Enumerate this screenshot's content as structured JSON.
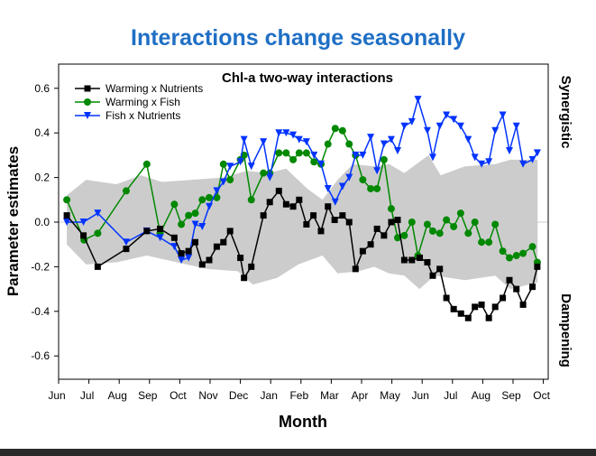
{
  "page_title": "Interactions change seasonally",
  "colors": {
    "title": "#1f6fc5",
    "band": "#cccccc",
    "warming_nutrients": "#000000",
    "warming_fish": "#008800",
    "fish_nutrients": "#0033ff"
  },
  "right_labels": {
    "top": "Synergistic",
    "bottom": "Dampening"
  },
  "chart_data": {
    "type": "line",
    "title": "Chl-a two-way interactions",
    "xlabel": "Month",
    "ylabel": "Parameter estimates",
    "x_unit": "months from first Jun tick",
    "xticks": [
      "Jun",
      "Jul",
      "Aug",
      "Sep",
      "Oct",
      "Nov",
      "Dec",
      "Jan",
      "Feb",
      "Mar",
      "Apr",
      "May",
      "Jun",
      "Jul",
      "Aug",
      "Sep",
      "Oct"
    ],
    "yticks": [
      "0.6",
      "0.4",
      "0.2",
      "0.0",
      "-0.2",
      "-0.4",
      "-0.6"
    ],
    "ylim": [
      -0.7,
      0.7
    ],
    "grid": false,
    "legend": "top-left",
    "band": {
      "upper": [
        [
          0.36,
          0.12
        ],
        [
          1,
          0.19
        ],
        [
          2,
          0.17
        ],
        [
          2.8,
          0.21
        ],
        [
          3.5,
          0.18
        ],
        [
          4.5,
          0.19
        ],
        [
          5.5,
          0.2
        ],
        [
          6.3,
          0.23
        ],
        [
          7,
          0.22
        ],
        [
          7.6,
          0.24
        ],
        [
          8.3,
          0.15
        ],
        [
          8.8,
          0.1
        ],
        [
          9.3,
          0.19
        ],
        [
          9.8,
          0.26
        ],
        [
          10.5,
          0.25
        ],
        [
          11,
          0.26
        ],
        [
          11.5,
          0.22
        ],
        [
          12.3,
          0.3
        ],
        [
          12.7,
          0.21
        ],
        [
          13.5,
          0.25
        ],
        [
          14.5,
          0.26
        ],
        [
          15,
          0.28
        ],
        [
          15.9,
          0.28
        ]
      ],
      "lower": [
        [
          0.36,
          -0.1
        ],
        [
          1,
          -0.19
        ],
        [
          2,
          -0.18
        ],
        [
          3,
          -0.15
        ],
        [
          4,
          -0.18
        ],
        [
          5,
          -0.21
        ],
        [
          6,
          -0.22
        ],
        [
          6.5,
          -0.28
        ],
        [
          7.3,
          -0.25
        ],
        [
          8,
          -0.19
        ],
        [
          8.8,
          -0.15
        ],
        [
          9.3,
          -0.23
        ],
        [
          10,
          -0.22
        ],
        [
          10.5,
          -0.2
        ],
        [
          11,
          -0.23
        ],
        [
          11.5,
          -0.24
        ],
        [
          12,
          -0.3
        ],
        [
          12.5,
          -0.24
        ],
        [
          13.5,
          -0.26
        ],
        [
          14.5,
          -0.24
        ],
        [
          15,
          -0.3
        ],
        [
          15.9,
          -0.27
        ]
      ]
    },
    "series": [
      {
        "name": "Warming x Nutrients",
        "marker": "square",
        "color": "#000000",
        "points": [
          [
            0.36,
            0.03
          ],
          [
            0.91,
            -0.06
          ],
          [
            1.38,
            -0.2
          ],
          [
            2.32,
            -0.12
          ],
          [
            3.0,
            -0.04
          ],
          [
            3.44,
            -0.03
          ],
          [
            3.91,
            -0.07
          ],
          [
            4.14,
            -0.14
          ],
          [
            4.38,
            -0.13
          ],
          [
            4.6,
            -0.09
          ],
          [
            4.83,
            -0.19
          ],
          [
            5.06,
            -0.17
          ],
          [
            5.31,
            -0.11
          ],
          [
            5.53,
            -0.09
          ],
          [
            5.75,
            -0.04
          ],
          [
            6.09,
            -0.16
          ],
          [
            6.21,
            -0.25
          ],
          [
            6.45,
            -0.2
          ],
          [
            6.85,
            0.03
          ],
          [
            7.06,
            0.09
          ],
          [
            7.36,
            0.14
          ],
          [
            7.6,
            0.08
          ],
          [
            7.83,
            0.07
          ],
          [
            8.03,
            0.1
          ],
          [
            8.27,
            -0.01
          ],
          [
            8.5,
            0.03
          ],
          [
            8.75,
            -0.04
          ],
          [
            8.98,
            0.07
          ],
          [
            9.2,
            0.01
          ],
          [
            9.46,
            0.03
          ],
          [
            9.68,
            0.0
          ],
          [
            9.89,
            -0.21
          ],
          [
            10.13,
            -0.13
          ],
          [
            10.39,
            -0.1
          ],
          [
            10.6,
            -0.03
          ],
          [
            10.83,
            -0.06
          ],
          [
            11.07,
            0.0
          ],
          [
            11.28,
            0.01
          ],
          [
            11.5,
            -0.17
          ],
          [
            11.75,
            -0.17
          ],
          [
            12.01,
            -0.16
          ],
          [
            12.26,
            -0.18
          ],
          [
            12.44,
            -0.24
          ],
          [
            12.67,
            -0.21
          ],
          [
            12.89,
            -0.34
          ],
          [
            13.13,
            -0.39
          ],
          [
            13.37,
            -0.41
          ],
          [
            13.61,
            -0.43
          ],
          [
            13.83,
            -0.38
          ],
          [
            14.05,
            -0.37
          ],
          [
            14.29,
            -0.43
          ],
          [
            14.5,
            -0.38
          ],
          [
            14.75,
            -0.34
          ],
          [
            14.97,
            -0.26
          ],
          [
            15.2,
            -0.3
          ],
          [
            15.42,
            -0.37
          ],
          [
            15.73,
            -0.29
          ],
          [
            15.89,
            -0.2
          ]
        ]
      },
      {
        "name": "Warming x Fish",
        "marker": "circle",
        "color": "#008800",
        "points": [
          [
            0.36,
            0.1
          ],
          [
            0.93,
            -0.08
          ],
          [
            1.38,
            -0.05
          ],
          [
            2.32,
            0.14
          ],
          [
            3.0,
            0.26
          ],
          [
            3.44,
            -0.05
          ],
          [
            3.91,
            0.08
          ],
          [
            4.14,
            -0.01
          ],
          [
            4.38,
            0.03
          ],
          [
            4.6,
            0.04
          ],
          [
            4.83,
            0.1
          ],
          [
            5.06,
            0.11
          ],
          [
            5.31,
            0.11
          ],
          [
            5.53,
            0.26
          ],
          [
            5.75,
            0.19
          ],
          [
            6.09,
            0.28
          ],
          [
            6.21,
            0.3
          ],
          [
            6.45,
            0.1
          ],
          [
            6.85,
            0.22
          ],
          [
            7.06,
            0.22
          ],
          [
            7.36,
            0.31
          ],
          [
            7.6,
            0.31
          ],
          [
            7.83,
            0.28
          ],
          [
            8.03,
            0.31
          ],
          [
            8.27,
            0.31
          ],
          [
            8.52,
            0.27
          ],
          [
            8.75,
            0.26
          ],
          [
            8.98,
            0.35
          ],
          [
            9.22,
            0.42
          ],
          [
            9.46,
            0.41
          ],
          [
            9.68,
            0.35
          ],
          [
            9.89,
            0.3
          ],
          [
            10.13,
            0.19
          ],
          [
            10.39,
            0.15
          ],
          [
            10.6,
            0.15
          ],
          [
            10.83,
            0.28
          ],
          [
            11.07,
            0.06
          ],
          [
            11.28,
            -0.07
          ],
          [
            11.5,
            -0.06
          ],
          [
            11.75,
            0.0
          ],
          [
            11.95,
            -0.15
          ],
          [
            12.26,
            -0.01
          ],
          [
            12.44,
            -0.04
          ],
          [
            12.67,
            -0.05
          ],
          [
            12.89,
            0.01
          ],
          [
            13.13,
            -0.02
          ],
          [
            13.36,
            0.04
          ],
          [
            13.61,
            -0.05
          ],
          [
            13.83,
            0.0
          ],
          [
            14.05,
            -0.09
          ],
          [
            14.29,
            -0.09
          ],
          [
            14.5,
            -0.01
          ],
          [
            14.75,
            -0.13
          ],
          [
            14.97,
            -0.16
          ],
          [
            15.2,
            -0.15
          ],
          [
            15.42,
            -0.14
          ],
          [
            15.73,
            -0.11
          ],
          [
            15.89,
            -0.18
          ]
        ]
      },
      {
        "name": "Fish x Nutrients",
        "marker": "triangle-down",
        "color": "#0033ff",
        "points": [
          [
            0.36,
            0.0
          ],
          [
            0.91,
            0.0
          ],
          [
            1.38,
            0.04
          ],
          [
            2.32,
            -0.09
          ],
          [
            3.0,
            -0.04
          ],
          [
            3.44,
            -0.07
          ],
          [
            3.91,
            -0.11
          ],
          [
            4.14,
            -0.17
          ],
          [
            4.38,
            -0.16
          ],
          [
            4.6,
            -0.01
          ],
          [
            4.83,
            -0.02
          ],
          [
            5.06,
            0.07
          ],
          [
            5.31,
            0.14
          ],
          [
            5.53,
            0.18
          ],
          [
            5.75,
            0.25
          ],
          [
            6.09,
            0.27
          ],
          [
            6.21,
            0.37
          ],
          [
            6.45,
            0.25
          ],
          [
            6.85,
            0.36
          ],
          [
            7.06,
            0.2
          ],
          [
            7.36,
            0.4
          ],
          [
            7.6,
            0.4
          ],
          [
            7.83,
            0.39
          ],
          [
            8.03,
            0.37
          ],
          [
            8.27,
            0.36
          ],
          [
            8.52,
            0.3
          ],
          [
            8.75,
            0.26
          ],
          [
            8.98,
            0.15
          ],
          [
            9.22,
            0.09
          ],
          [
            9.46,
            0.16
          ],
          [
            9.68,
            0.2
          ],
          [
            9.89,
            0.3
          ],
          [
            10.13,
            0.3
          ],
          [
            10.39,
            0.38
          ],
          [
            10.6,
            0.23
          ],
          [
            10.83,
            0.35
          ],
          [
            11.07,
            0.37
          ],
          [
            11.28,
            0.32
          ],
          [
            11.5,
            0.43
          ],
          [
            11.75,
            0.45
          ],
          [
            11.95,
            0.55
          ],
          [
            12.26,
            0.41
          ],
          [
            12.44,
            0.29
          ],
          [
            12.67,
            0.43
          ],
          [
            12.89,
            0.48
          ],
          [
            13.13,
            0.46
          ],
          [
            13.36,
            0.43
          ],
          [
            13.61,
            0.37
          ],
          [
            13.83,
            0.29
          ],
          [
            14.05,
            0.26
          ],
          [
            14.29,
            0.27
          ],
          [
            14.5,
            0.41
          ],
          [
            14.75,
            0.48
          ],
          [
            14.97,
            0.32
          ],
          [
            15.2,
            0.43
          ],
          [
            15.42,
            0.26
          ],
          [
            15.73,
            0.28
          ],
          [
            15.89,
            0.31
          ]
        ]
      }
    ]
  }
}
